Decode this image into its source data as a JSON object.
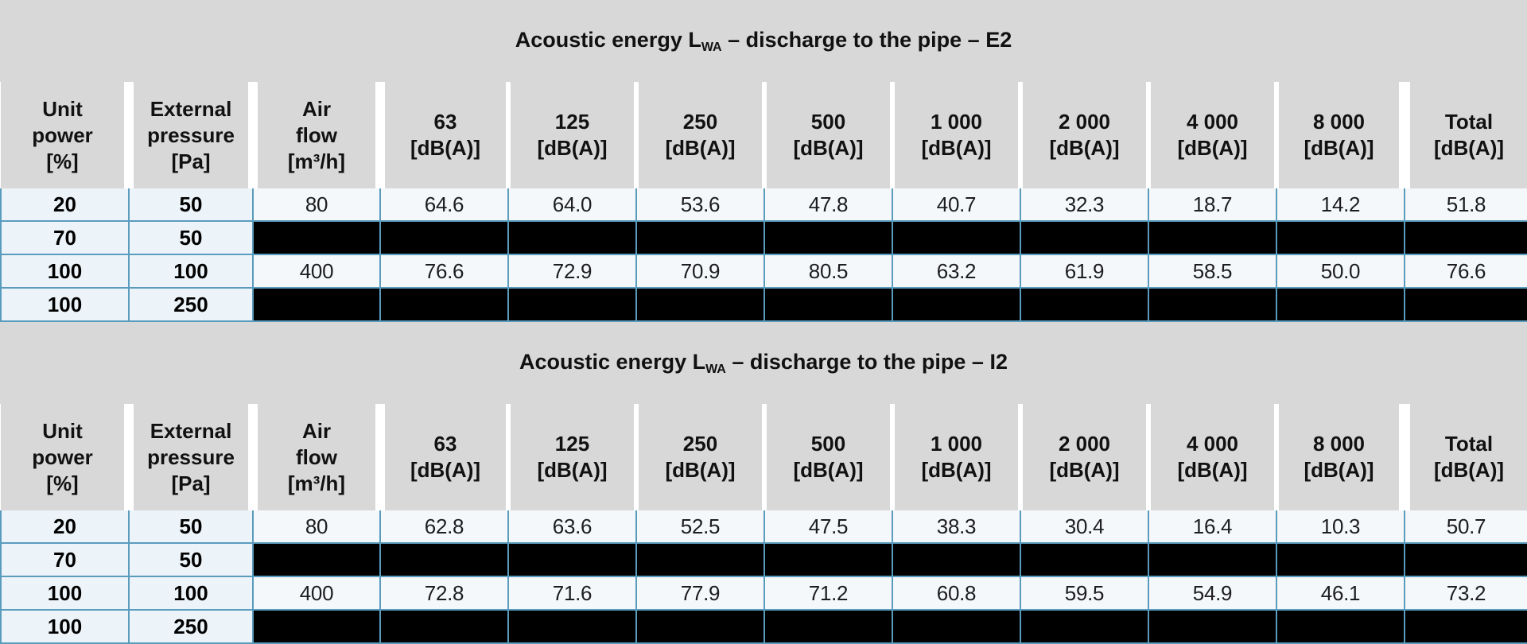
{
  "colors": {
    "page_bg": "#ffffff",
    "header_gray": "#d8d8d8",
    "border_blue": "#5a9cbd",
    "lead_cell_bg": "#ecf4f9",
    "value_cell_bg": "#f5f8fa",
    "blacked_cell_bg": "#000000"
  },
  "column_headers": [
    "Unit\npower\n[%]",
    "External\npressure\n[Pa]",
    "Air\nflow\n[m³/h]",
    "63\n[dB(A)]",
    "125\n[dB(A)]",
    "250\n[dB(A)]",
    "500\n[dB(A)]",
    "1 000\n[dB(A)]",
    "2 000\n[dB(A)]",
    "4 000\n[dB(A)]",
    "8 000\n[dB(A)]",
    "Total\n[dB(A)]"
  ],
  "tables": [
    {
      "title": {
        "prefix": "Acoustic energy L",
        "subscript": "WA",
        "suffix": " – discharge to the pipe – E2"
      },
      "rows": [
        {
          "unit_power": "20",
          "external_pressure": "50",
          "blacked_out": false,
          "cells": [
            "80",
            "64.6",
            "64.0",
            "53.6",
            "47.8",
            "40.7",
            "32.3",
            "18.7",
            "14.2",
            "51.8"
          ]
        },
        {
          "unit_power": "70",
          "external_pressure": "50",
          "blacked_out": true,
          "cells": []
        },
        {
          "unit_power": "100",
          "external_pressure": "100",
          "blacked_out": false,
          "cells": [
            "400",
            "76.6",
            "72.9",
            "70.9",
            "80.5",
            "63.2",
            "61.9",
            "58.5",
            "50.0",
            "76.6"
          ]
        },
        {
          "unit_power": "100",
          "external_pressure": "250",
          "blacked_out": true,
          "cells": []
        }
      ]
    },
    {
      "title": {
        "prefix": "Acoustic energy L",
        "subscript": "WA",
        "suffix": " – discharge to the pipe – I2"
      },
      "rows": [
        {
          "unit_power": "20",
          "external_pressure": "50",
          "blacked_out": false,
          "cells": [
            "80",
            "62.8",
            "63.6",
            "52.5",
            "47.5",
            "38.3",
            "30.4",
            "16.4",
            "10.3",
            "50.7"
          ]
        },
        {
          "unit_power": "70",
          "external_pressure": "50",
          "blacked_out": true,
          "cells": []
        },
        {
          "unit_power": "100",
          "external_pressure": "100",
          "blacked_out": false,
          "cells": [
            "400",
            "72.8",
            "71.6",
            "77.9",
            "71.2",
            "60.8",
            "59.5",
            "54.9",
            "46.1",
            "73.2"
          ]
        },
        {
          "unit_power": "100",
          "external_pressure": "250",
          "blacked_out": true,
          "cells": []
        }
      ]
    }
  ]
}
